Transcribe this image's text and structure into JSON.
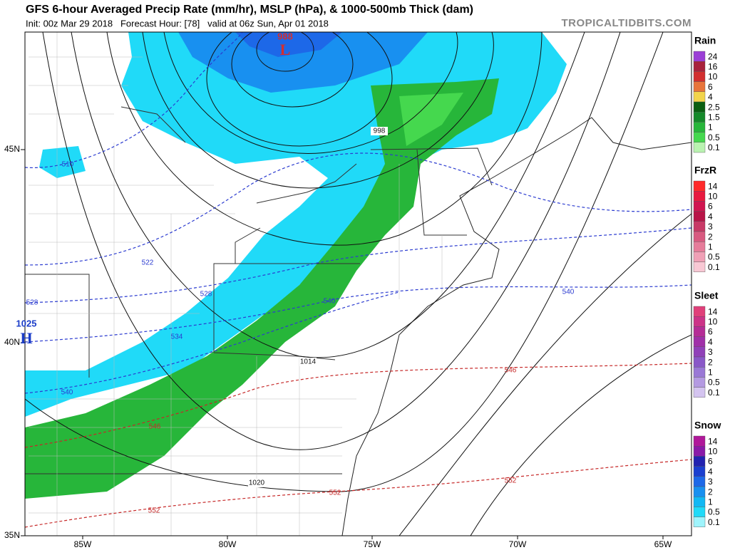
{
  "header": {
    "title": "GFS 6-hour Averaged Precip Rate (mm/hr), MSLP (hPa), & 1000-500mb Thick (dam)",
    "subtitle": "Init: 00z Mar 29 2018   Forecast Hour: [78]   valid at 06z Sun, Apr 01 2018",
    "watermark": "TROPICALTIDBITS.COM"
  },
  "axes": {
    "lon_labels": [
      "85W",
      "80W",
      "75W",
      "70W",
      "65W"
    ],
    "lat_labels": [
      "45N",
      "40N",
      "35N"
    ]
  },
  "legend": [
    {
      "title": "Rain",
      "labels": [
        "24",
        "16",
        "10",
        "6",
        "4",
        "2.5",
        "1.5",
        "1",
        "0.5",
        "0.1"
      ],
      "colors": [
        "#9b3fd6",
        "#a8223c",
        "#d22e2e",
        "#e8743a",
        "#f2d44c",
        "#0b5f12",
        "#15892a",
        "#27b63a",
        "#45d84e",
        "#b9f2b0"
      ]
    },
    {
      "title": "FrzR",
      "labels": [
        "14",
        "10",
        "6",
        "4",
        "3",
        "2",
        "1",
        "0.5",
        "0.1"
      ],
      "colors": [
        "#ff2a2a",
        "#e8193f",
        "#d01550",
        "#b81548",
        "#c83a66",
        "#d85a80",
        "#e67c9a",
        "#f0a0b6",
        "#f8c8d4"
      ]
    },
    {
      "title": "Sleet",
      "labels": [
        "14",
        "10",
        "6",
        "4",
        "3",
        "2",
        "1",
        "0.5",
        "0.1"
      ],
      "colors": [
        "#e0407a",
        "#cc3388",
        "#b52c96",
        "#a030a8",
        "#9040b8",
        "#8a58c8",
        "#9a78d6",
        "#b49ae2",
        "#d4c4f0"
      ]
    },
    {
      "title": "Snow",
      "labels": [
        "14",
        "10",
        "6",
        "4",
        "3",
        "2",
        "1",
        "0.5",
        "0.1"
      ],
      "colors": [
        "#b0189a",
        "#8a1aa8",
        "#2222b0",
        "#1b3fd0",
        "#1d68e8",
        "#1890f0",
        "#12b8f4",
        "#20daf8",
        "#9ff4fc"
      ]
    }
  ],
  "thickness_contours": [
    {
      "label": "510",
      "color": "#2b3bd0"
    },
    {
      "label": "522",
      "color": "#2b3bd0"
    },
    {
      "label": "528",
      "color": "#2b3bd0"
    },
    {
      "label": "528",
      "color": "#2b3bd0"
    },
    {
      "label": "534",
      "color": "#2b3bd0"
    },
    {
      "label": "540",
      "color": "#2b3bd0"
    },
    {
      "label": "540",
      "color": "#2b3bd0"
    },
    {
      "label": "540",
      "color": "#2b3bd0"
    },
    {
      "label": "546",
      "color": "#c62828"
    },
    {
      "label": "546",
      "color": "#c62828"
    },
    {
      "label": "552",
      "color": "#c62828"
    },
    {
      "label": "552",
      "color": "#c62828"
    },
    {
      "label": "552",
      "color": "#c62828"
    }
  ],
  "isobar_labels": [
    "998",
    "1014",
    "1020"
  ],
  "pressure_centers": [
    {
      "value": "988",
      "symbol": "L",
      "color": "#d32f2f"
    },
    {
      "value": "1025",
      "symbol": "H",
      "color": "#1a3cc8"
    }
  ]
}
